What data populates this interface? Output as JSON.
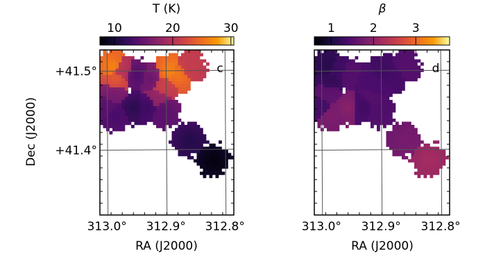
{
  "chart_data": [
    {
      "type": "heatmap",
      "panel_label": "c",
      "colorbar": {
        "title": "T (K)",
        "ticks": [
          "10",
          "20",
          "30"
        ],
        "tick_values": [
          10,
          20,
          30
        ],
        "range": [
          7.5,
          30.5
        ],
        "colormap": "inferno"
      },
      "ylabel": "Dec (J2000)",
      "xlabel": "RA (J2000)",
      "xticks": [
        "313.0°",
        "312.9°",
        "312.8°"
      ],
      "xtick_values": [
        313.0,
        312.9,
        312.8
      ],
      "yticks": [
        "+41.5°",
        "+41.4°"
      ],
      "ytick_values": [
        41.5,
        41.4
      ],
      "xlim": [
        313.012,
        312.785
      ],
      "ylim": [
        41.318,
        41.527
      ],
      "blobs": [
        {
          "ra": 312.99,
          "dec": 41.505,
          "value": 27
        },
        {
          "ra": 312.985,
          "dec": 41.49,
          "value": 24
        },
        {
          "ra": 312.975,
          "dec": 41.5,
          "value": 20
        },
        {
          "ra": 312.95,
          "dec": 41.495,
          "value": 13
        },
        {
          "ra": 312.925,
          "dec": 41.49,
          "value": 15
        },
        {
          "ra": 312.895,
          "dec": 41.5,
          "value": 27
        },
        {
          "ra": 312.88,
          "dec": 41.495,
          "value": 26
        },
        {
          "ra": 312.86,
          "dec": 41.505,
          "value": 21
        },
        {
          "ra": 312.905,
          "dec": 41.48,
          "value": 22
        },
        {
          "ra": 312.915,
          "dec": 41.465,
          "value": 18
        },
        {
          "ra": 312.905,
          "dec": 41.45,
          "value": 14
        },
        {
          "ra": 312.93,
          "dec": 41.455,
          "value": 12
        },
        {
          "ra": 312.955,
          "dec": 41.455,
          "value": 11
        },
        {
          "ra": 312.985,
          "dec": 41.445,
          "value": 13
        },
        {
          "ra": 313.0,
          "dec": 41.455,
          "value": 14
        },
        {
          "ra": 312.99,
          "dec": 41.47,
          "value": 16
        },
        {
          "ra": 312.86,
          "dec": 41.413,
          "value": 11
        },
        {
          "ra": 312.82,
          "dec": 41.388,
          "value": 8
        }
      ]
    },
    {
      "type": "heatmap",
      "panel_label": "d",
      "colorbar": {
        "title": "β",
        "ticks": [
          "1",
          "2",
          "3"
        ],
        "tick_values": [
          1,
          2,
          3
        ],
        "range": [
          0.6,
          3.8
        ],
        "colormap": "inferno"
      },
      "xlabel": "RA (J2000)",
      "xticks": [
        "313.0°",
        "312.9°",
        "312.8°"
      ],
      "xtick_values": [
        313.0,
        312.9,
        312.8
      ],
      "xlim": [
        313.012,
        312.785
      ],
      "ylim": [
        41.318,
        41.527
      ],
      "blobs": [
        {
          "ra": 312.99,
          "dec": 41.505,
          "value": 1.1
        },
        {
          "ra": 312.985,
          "dec": 41.49,
          "value": 1.2
        },
        {
          "ra": 312.975,
          "dec": 41.5,
          "value": 1.3
        },
        {
          "ra": 312.95,
          "dec": 41.495,
          "value": 1.5
        },
        {
          "ra": 312.925,
          "dec": 41.49,
          "value": 1.4
        },
        {
          "ra": 312.895,
          "dec": 41.5,
          "value": 1.3
        },
        {
          "ra": 312.88,
          "dec": 41.495,
          "value": 1.35
        },
        {
          "ra": 312.86,
          "dec": 41.505,
          "value": 1.5
        },
        {
          "ra": 312.905,
          "dec": 41.48,
          "value": 1.4
        },
        {
          "ra": 312.915,
          "dec": 41.465,
          "value": 1.5
        },
        {
          "ra": 312.905,
          "dec": 41.45,
          "value": 1.45
        },
        {
          "ra": 312.93,
          "dec": 41.455,
          "value": 1.3
        },
        {
          "ra": 312.955,
          "dec": 41.455,
          "value": 2.0
        },
        {
          "ra": 312.985,
          "dec": 41.445,
          "value": 1.9
        },
        {
          "ra": 313.0,
          "dec": 41.455,
          "value": 1.3
        },
        {
          "ra": 312.99,
          "dec": 41.47,
          "value": 1.6
        },
        {
          "ra": 312.86,
          "dec": 41.413,
          "value": 1.8
        },
        {
          "ra": 312.82,
          "dec": 41.388,
          "value": 2.2
        }
      ]
    }
  ]
}
